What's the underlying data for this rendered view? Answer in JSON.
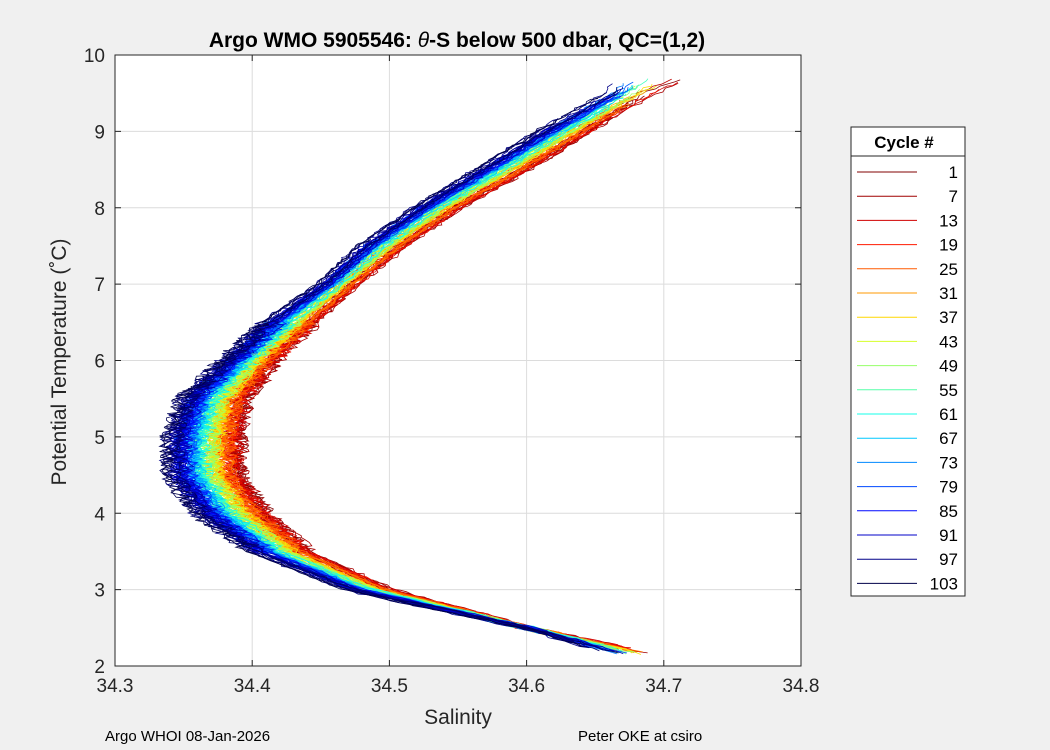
{
  "chart_data": {
    "type": "line",
    "title_prefix": "Argo WMO 5905546: ",
    "title_theta": "θ",
    "title_suffix": "-S below 500 dbar,  QC=(1,2)",
    "xlabel": "Salinity",
    "ylabel": "Potential Temperature (˚C)",
    "xlim": [
      34.3,
      34.8
    ],
    "ylim": [
      2,
      10
    ],
    "xticks": [
      "34.3",
      "34.4",
      "34.5",
      "34.6",
      "34.7",
      "34.8"
    ],
    "yticks": [
      "2",
      "3",
      "4",
      "5",
      "6",
      "7",
      "8",
      "9",
      "10"
    ],
    "grid": true,
    "legend_title": "Cycle #",
    "legend_position": "right",
    "legend": [
      {
        "label": "1",
        "color": "#800000"
      },
      {
        "label": "7",
        "color": "#a00000"
      },
      {
        "label": "13",
        "color": "#d00000"
      },
      {
        "label": "19",
        "color": "#ff1a00"
      },
      {
        "label": "25",
        "color": "#ff5a00"
      },
      {
        "label": "31",
        "color": "#ff9a00"
      },
      {
        "label": "37",
        "color": "#ffd700"
      },
      {
        "label": "43",
        "color": "#d6ff29"
      },
      {
        "label": "49",
        "color": "#96ff69"
      },
      {
        "label": "55",
        "color": "#56ffa9"
      },
      {
        "label": "61",
        "color": "#16ffe9"
      },
      {
        "label": "67",
        "color": "#00c8ff"
      },
      {
        "label": "73",
        "color": "#0088ff"
      },
      {
        "label": "79",
        "color": "#0048ff"
      },
      {
        "label": "85",
        "color": "#0008ff"
      },
      {
        "label": "91",
        "color": "#0000c8"
      },
      {
        "label": "97",
        "color": "#000088"
      },
      {
        "label": "103",
        "color": "#00004a"
      }
    ],
    "profile_shape": {
      "temperature": [
        2.15,
        2.5,
        3.0,
        3.5,
        4.0,
        4.5,
        5.0,
        5.5,
        6.0,
        6.5,
        7.0,
        7.5,
        8.0,
        8.5,
        9.0,
        9.5,
        9.7
      ],
      "salinity_early": [
        34.695,
        34.6,
        34.5,
        34.44,
        34.41,
        34.39,
        34.39,
        34.395,
        34.415,
        34.445,
        34.475,
        34.51,
        34.55,
        34.6,
        34.645,
        34.69,
        34.72
      ],
      "salinity_late": [
        34.665,
        34.6,
        34.47,
        34.4,
        34.36,
        34.34,
        34.34,
        34.35,
        34.38,
        34.41,
        34.45,
        34.48,
        34.52,
        34.565,
        34.61,
        34.66,
        34.665
      ]
    }
  },
  "footer": {
    "left": "Argo WHOI 08-Jan-2026",
    "right": "Peter OKE at csiro"
  }
}
